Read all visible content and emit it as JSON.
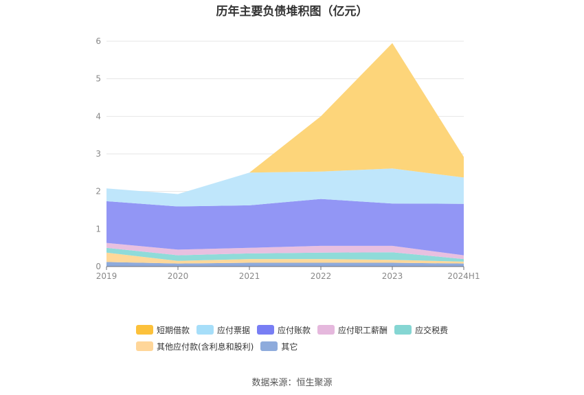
{
  "chart_data": {
    "type": "area",
    "stacked": true,
    "title": "历年主要负债堆积图（亿元）",
    "x": [
      "2019",
      "2020",
      "2021",
      "2022",
      "2023",
      "2024H1"
    ],
    "ylim": [
      0,
      6
    ],
    "yticks": [
      "0",
      "1",
      "2",
      "3",
      "4",
      "5",
      "6"
    ],
    "grid": true,
    "legend_position": "bottom",
    "series": [
      {
        "name": "其它",
        "color": "#8eaadb",
        "values": [
          0.12,
          0.08,
          0.1,
          0.1,
          0.1,
          0.08
        ]
      },
      {
        "name": "其他应付款(含利息和股利)",
        "color": "#ffd899",
        "values": [
          0.25,
          0.07,
          0.1,
          0.1,
          0.08,
          0.05
        ]
      },
      {
        "name": "应交税费",
        "color": "#8fdbd9",
        "values": [
          0.13,
          0.15,
          0.15,
          0.17,
          0.2,
          0.07
        ]
      },
      {
        "name": "应付职工薪酬",
        "color": "#e8c0e0",
        "values": [
          0.13,
          0.15,
          0.15,
          0.18,
          0.17,
          0.1
        ]
      },
      {
        "name": "应付账款",
        "color": "#9296f5",
        "values": [
          1.11,
          1.15,
          1.13,
          1.25,
          1.13,
          1.37
        ]
      },
      {
        "name": "应付票据",
        "color": "#bfe6fb",
        "values": [
          0.34,
          0.33,
          0.87,
          0.73,
          0.93,
          0.7
        ]
      },
      {
        "name": "短期借款",
        "color": "#fdd57a",
        "values": [
          0,
          0,
          0,
          1.47,
          3.34,
          0.55
        ]
      }
    ]
  },
  "legend": [
    {
      "label": "短期借款",
      "color": "#fcc13b"
    },
    {
      "label": "应付票据",
      "color": "#a6def9"
    },
    {
      "label": "应付账款",
      "color": "#787ef4"
    },
    {
      "label": "应付职工薪酬",
      "color": "#e5b8dd"
    },
    {
      "label": "应交税费",
      "color": "#85d6d3"
    },
    {
      "label": "其他应付款(含利息和股利)",
      "color": "#ffd699"
    },
    {
      "label": "其它",
      "color": "#8eabdc"
    }
  ],
  "source": "数据来源：恒生聚源"
}
